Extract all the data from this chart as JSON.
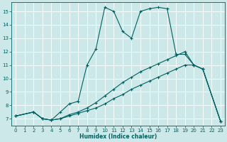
{
  "xlabel": "Humidex (Indice chaleur)",
  "xlim": [
    -0.5,
    23.5
  ],
  "ylim": [
    6.5,
    15.7
  ],
  "yticks": [
    7,
    8,
    9,
    10,
    11,
    12,
    13,
    14,
    15
  ],
  "xticks": [
    0,
    1,
    2,
    3,
    4,
    5,
    6,
    7,
    8,
    9,
    10,
    11,
    12,
    13,
    14,
    15,
    16,
    17,
    18,
    19,
    20,
    21,
    22,
    23
  ],
  "bg_color": "#cde8e8",
  "grid_color": "#b0d0d0",
  "line_color": "#006060",
  "curve1_x": [
    0,
    2,
    3,
    4,
    5,
    6,
    7,
    8,
    9,
    10,
    11,
    12,
    13,
    14,
    15,
    16,
    17,
    18,
    19,
    20,
    21,
    23
  ],
  "curve1_y": [
    7.2,
    7.5,
    7.0,
    6.9,
    7.5,
    8.1,
    8.3,
    11.0,
    12.2,
    15.3,
    15.0,
    13.5,
    13.0,
    15.0,
    15.2,
    15.3,
    15.2,
    11.8,
    11.8,
    11.0,
    10.7,
    6.8
  ],
  "curve2_x": [
    0,
    2,
    3,
    4,
    5,
    6,
    7,
    8,
    9,
    10,
    11,
    12,
    13,
    14,
    15,
    16,
    17,
    18,
    19,
    20,
    21,
    23
  ],
  "curve2_y": [
    7.2,
    7.5,
    7.0,
    6.9,
    7.0,
    7.3,
    7.5,
    7.8,
    8.2,
    8.7,
    9.2,
    9.7,
    10.1,
    10.5,
    10.8,
    11.1,
    11.4,
    11.7,
    12.0,
    11.0,
    10.7,
    6.8
  ],
  "curve3_x": [
    0,
    2,
    3,
    4,
    5,
    6,
    7,
    8,
    9,
    10,
    11,
    12,
    13,
    14,
    15,
    16,
    17,
    18,
    19,
    20,
    21,
    23
  ],
  "curve3_y": [
    7.2,
    7.5,
    7.0,
    6.9,
    7.0,
    7.2,
    7.4,
    7.6,
    7.8,
    8.1,
    8.5,
    8.8,
    9.2,
    9.5,
    9.8,
    10.1,
    10.4,
    10.7,
    11.0,
    11.0,
    10.7,
    6.8
  ]
}
